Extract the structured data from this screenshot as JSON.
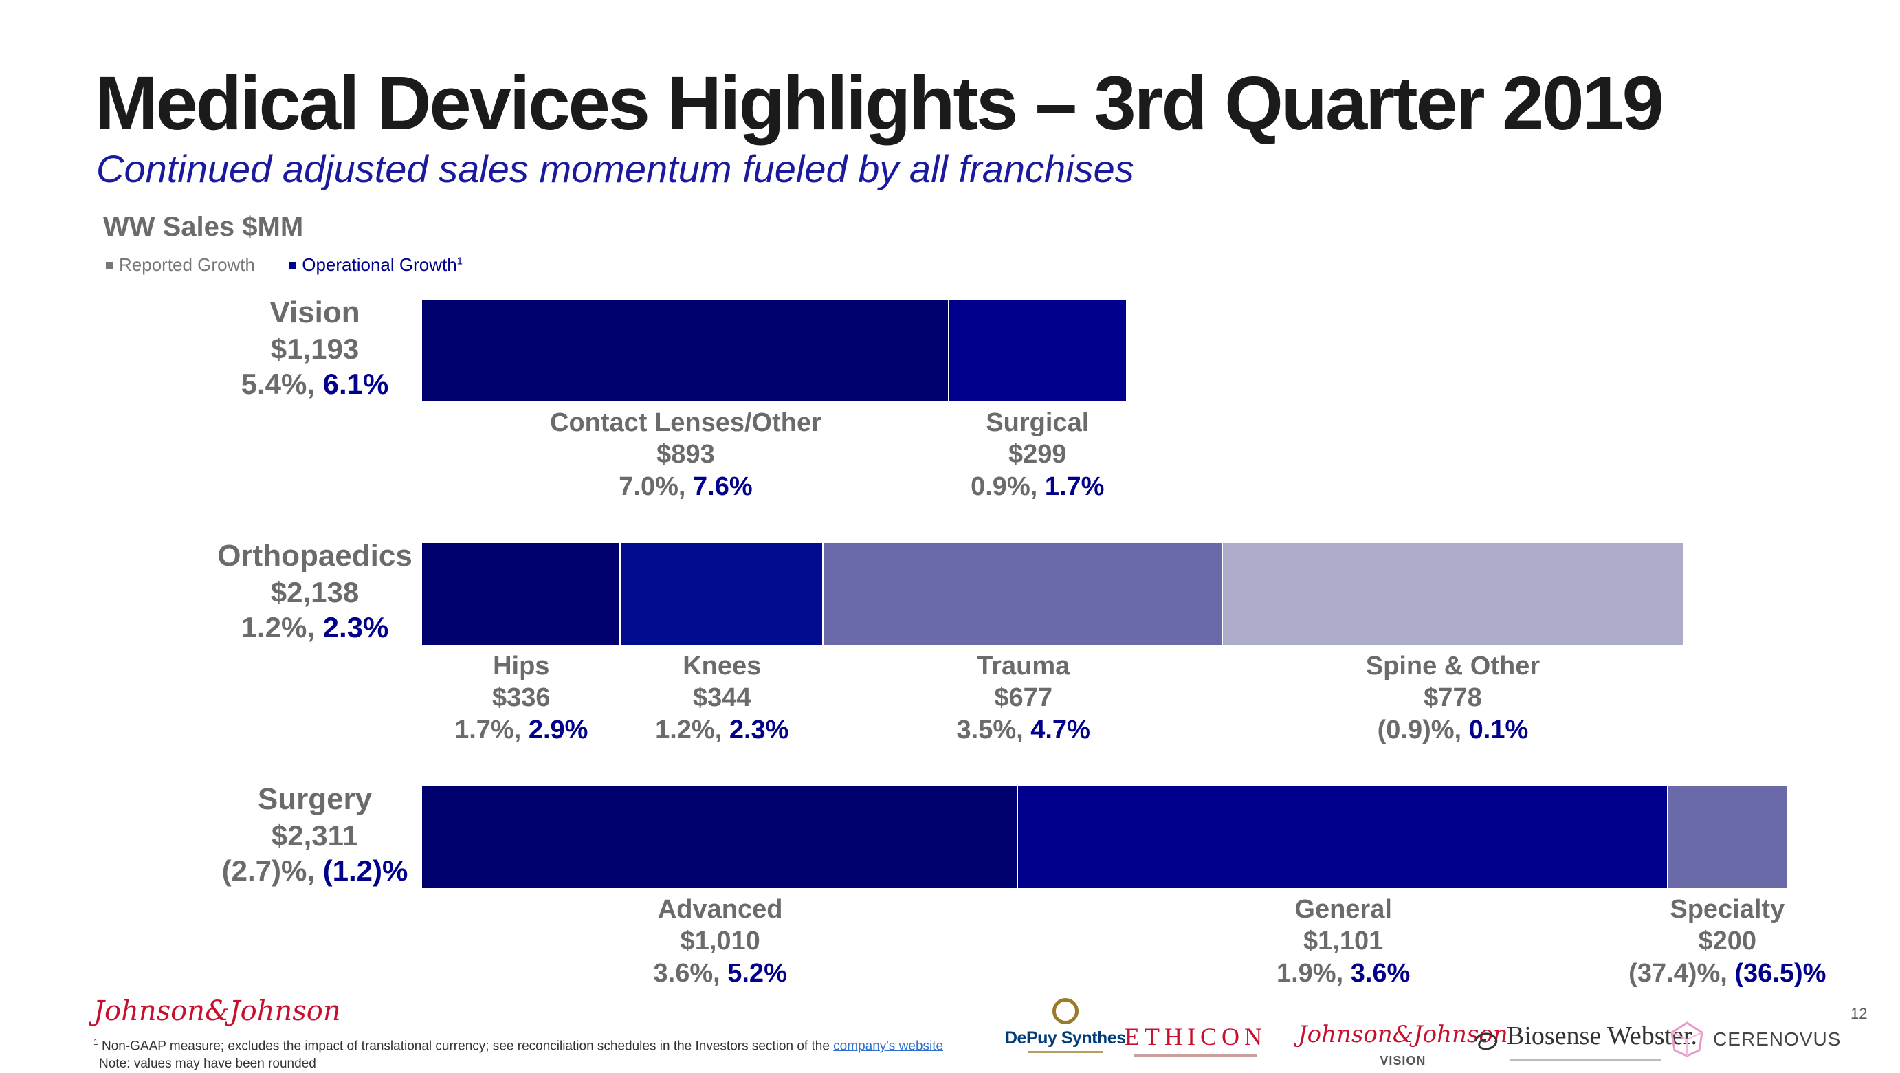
{
  "title": "Medical Devices Highlights – 3rd Quarter 2019",
  "subtitle": "Continued adjusted sales momentum fueled by all franchises",
  "section_label": "WW Sales $MM",
  "legend": {
    "reported_label": "Reported Growth",
    "operational_label": "Operational Growth",
    "operational_footnote_mark": "1",
    "reported_color": "#777777",
    "operational_color": "#00008c"
  },
  "chart_data": {
    "type": "bar",
    "orientation": "horizontal-stacked",
    "title": "WW Sales $MM",
    "legend": [
      "Reported Growth",
      "Operational Growth"
    ],
    "legend_placement": "top-left",
    "rows": [
      {
        "name": "Vision",
        "total": "$1,193",
        "reported": "5.4%",
        "operational": "6.1%",
        "segments": [
          {
            "name": "Contact Lenses/Other",
            "value": 893,
            "value_label": "$893",
            "reported": "7.0%",
            "operational": "7.6%",
            "color": "#00006e"
          },
          {
            "name": "Surgical",
            "value": 299,
            "value_label": "$299",
            "reported": "0.9%",
            "operational": "1.7%",
            "color": "#00008c"
          }
        ]
      },
      {
        "name": "Orthopaedics",
        "total": "$2,138",
        "reported": "1.2%",
        "operational": "2.3%",
        "segments": [
          {
            "name": "Hips",
            "value": 336,
            "value_label": "$336",
            "reported": "1.7%",
            "operational": "2.9%",
            "color": "#00006e"
          },
          {
            "name": "Knees",
            "value": 344,
            "value_label": "$344",
            "reported": "1.2%",
            "operational": "2.3%",
            "color": "#000d8f"
          },
          {
            "name": "Trauma",
            "value": 677,
            "value_label": "$677",
            "reported": "3.5%",
            "operational": "4.7%",
            "color": "#6a6aa9"
          },
          {
            "name": "Spine & Other",
            "value": 778,
            "value_label": "$778",
            "reported": "(0.9)%",
            "operational": "0.1%",
            "color": "#acacca"
          }
        ]
      },
      {
        "name": "Surgery",
        "total": "$2,311",
        "reported": "(2.7)%",
        "operational": "(1.2)%",
        "segments": [
          {
            "name": "Advanced",
            "value": 1010,
            "value_label": "$1,010",
            "reported": "3.6%",
            "operational": "5.2%",
            "color": "#00006e"
          },
          {
            "name": "General",
            "value": 1101,
            "value_label": "$1,101",
            "reported": "1.9%",
            "operational": "3.6%",
            "color": "#00008c"
          },
          {
            "name": "Specialty",
            "value": 200,
            "value_label": "$200",
            "reported": "(37.4)%",
            "operational": "(36.5)%",
            "color": "#6a6aa9"
          }
        ]
      }
    ]
  },
  "footer": {
    "footnote_mark": "1",
    "footnote_text": "Non-GAAP measure; excludes the impact of translational currency; see reconciliation schedules in the Investors section of the",
    "footnote_link": "company's website",
    "note": "Note: values may have been rounded"
  },
  "page_number": "12",
  "logos": {
    "jj": "Johnson&Johnson",
    "depuy": "DePuy Synthes",
    "ethicon": "ETHICON",
    "jj_vision": "Johnson&Johnson",
    "jj_vision_sub": "VISION",
    "biosense": "Biosense Webster.",
    "cerenovus": "CERENOVUS"
  }
}
